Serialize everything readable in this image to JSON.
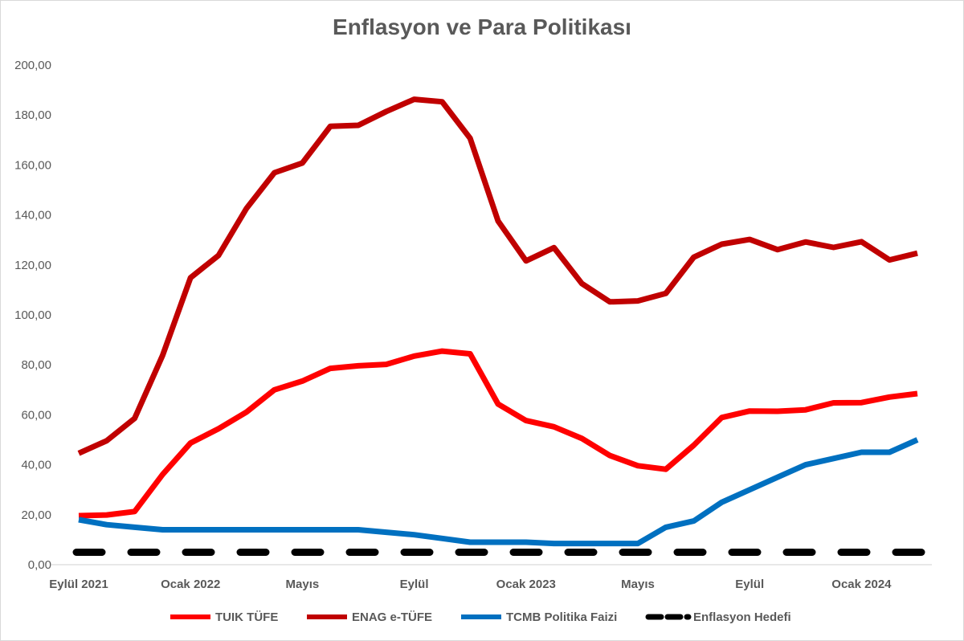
{
  "chart_data": {
    "type": "line",
    "title": "Enflasyon ve Para Politikası",
    "ylim": [
      0,
      200
    ],
    "yticks": [
      "0,00",
      "20,00",
      "40,00",
      "60,00",
      "80,00",
      "100,00",
      "120,00",
      "140,00",
      "160,00",
      "180,00",
      "200,00"
    ],
    "x_tick_labels": [
      {
        "index": 0,
        "label": "Eylül 2021"
      },
      {
        "index": 4,
        "label": "Ocak 2022"
      },
      {
        "index": 8,
        "label": "Mayıs"
      },
      {
        "index": 12,
        "label": "Eylül"
      },
      {
        "index": 16,
        "label": "Ocak 2023"
      },
      {
        "index": 20,
        "label": "Mayıs"
      },
      {
        "index": 24,
        "label": "Eylül"
      },
      {
        "index": 28,
        "label": "Ocak 2024"
      }
    ],
    "point_count": 31,
    "grid": false,
    "legend_position": "bottom",
    "series": [
      {
        "name": "TUIK TÜFE",
        "color": "#ff0000",
        "style": "solid",
        "values": [
          19.6,
          19.9,
          21.3,
          36.1,
          48.7,
          54.4,
          61.1,
          70.0,
          73.5,
          78.6,
          79.6,
          80.2,
          83.5,
          85.5,
          84.4,
          64.3,
          57.7,
          55.2,
          50.5,
          43.7,
          39.6,
          38.2,
          47.8,
          58.9,
          61.5,
          61.4,
          62.0,
          64.8,
          64.9,
          67.1,
          68.5
        ]
      },
      {
        "name": "ENAG e-TÜFE",
        "color": "#c00000",
        "style": "solid",
        "values": [
          44.6,
          49.6,
          58.6,
          83.8,
          114.9,
          123.8,
          142.6,
          156.9,
          160.8,
          175.5,
          175.9,
          181.4,
          186.3,
          185.3,
          170.7,
          137.6,
          121.6,
          126.9,
          112.5,
          105.2,
          105.6,
          108.6,
          123.1,
          128.3,
          130.2,
          126.1,
          129.2,
          127.0,
          129.3,
          122.0,
          124.7
        ]
      },
      {
        "name": "TCMB Politika Faizi",
        "color": "#0070c0",
        "style": "solid",
        "values": [
          18,
          16,
          15,
          14,
          14,
          14,
          14,
          14,
          14,
          14,
          14,
          13,
          12,
          10.5,
          9,
          9,
          9,
          8.5,
          8.5,
          8.5,
          8.5,
          15,
          17.5,
          25,
          30,
          35,
          40,
          42.5,
          45,
          45,
          50
        ]
      },
      {
        "name": "Enflasyon Hedefi",
        "color": "#000000",
        "style": "dashed",
        "values": [
          5,
          5,
          5,
          5,
          5,
          5,
          5,
          5,
          5,
          5,
          5,
          5,
          5,
          5,
          5,
          5,
          5,
          5,
          5,
          5,
          5,
          5,
          5,
          5,
          5,
          5,
          5,
          5,
          5,
          5,
          5
        ]
      }
    ]
  }
}
